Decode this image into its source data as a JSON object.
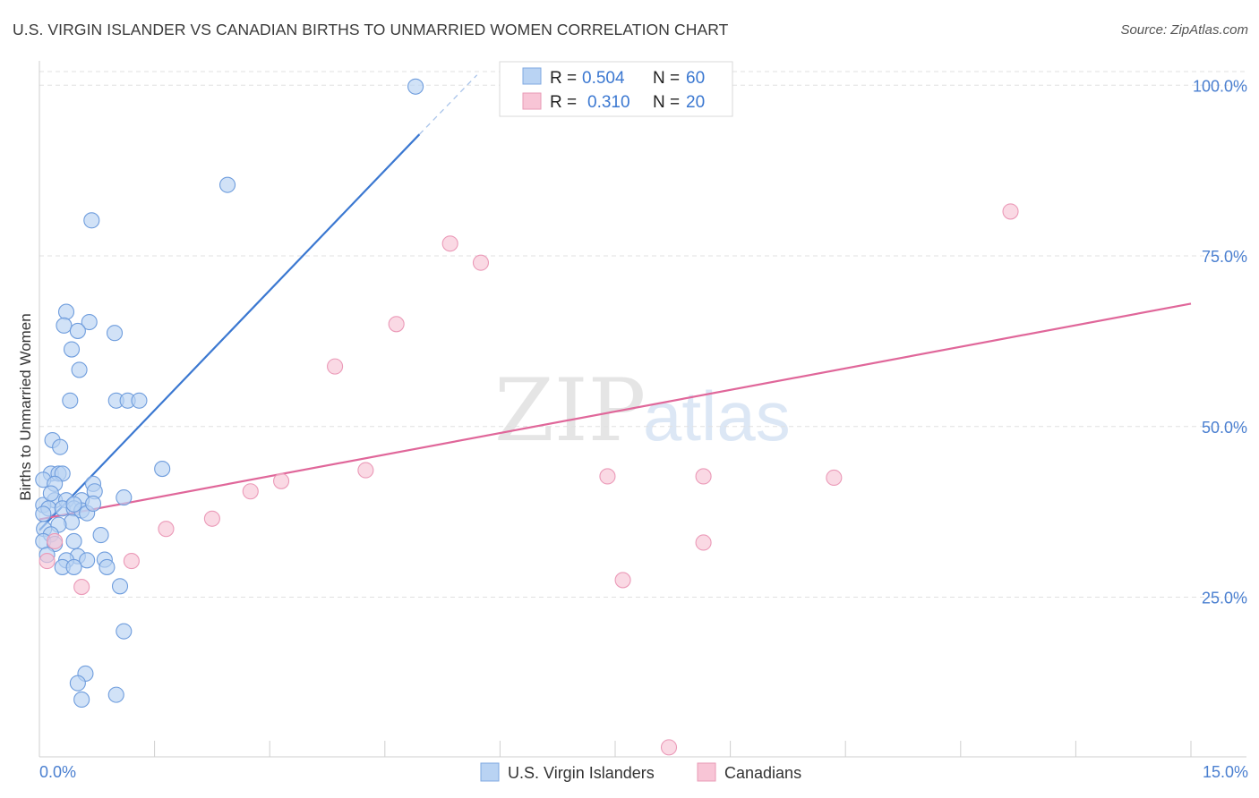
{
  "title": "U.S. VIRGIN ISLANDER VS CANADIAN BIRTHS TO UNMARRIED WOMEN CORRELATION CHART",
  "source": "Source: ZipAtlas.com",
  "watermark": {
    "zip": "ZIP",
    "atlas": "atlas"
  },
  "colors": {
    "blue": "#3b78d1",
    "blue_fill": "#b9d3f3",
    "pink": "#e0679a",
    "pink_fill": "#f8c5d6",
    "axis_text": "#4a7fd0",
    "grid": "#e0e0e0"
  },
  "stats": [
    {
      "r_label": "R =",
      "r_value": "0.504",
      "n_label": "N =",
      "n_value": "60",
      "series": "U.S. Virgin Islanders"
    },
    {
      "r_label": "R =",
      "r_value": "0.310",
      "n_label": "N =",
      "n_value": "20",
      "series": "Canadians"
    }
  ],
  "chart_data": {
    "type": "scatter",
    "title": "U.S. VIRGIN ISLANDER VS CANADIAN BIRTHS TO UNMARRIED WOMEN CORRELATION CHART",
    "xlabel": "",
    "ylabel": "Births to Unmarried Women",
    "xlim": [
      0,
      15
    ],
    "ylim": [
      2,
      102
    ],
    "x_tick_labels": [
      "0.0%",
      "15.0%"
    ],
    "y_ticks": [
      25,
      50,
      75,
      100
    ],
    "y_tick_labels": [
      "25.0%",
      "50.0%",
      "75.0%",
      "100.0%"
    ],
    "grid": true,
    "legend": [
      "U.S. Virgin Islanders",
      "Canadians"
    ],
    "series": [
      {
        "name": "U.S. Virgin Islanders",
        "points": [
          [
            4.9,
            99.8
          ],
          [
            2.45,
            85.4
          ],
          [
            0.68,
            80.2
          ],
          [
            0.35,
            66.8
          ],
          [
            0.32,
            64.8
          ],
          [
            0.65,
            65.3
          ],
          [
            0.5,
            64.0
          ],
          [
            0.98,
            63.7
          ],
          [
            0.42,
            61.3
          ],
          [
            0.52,
            58.3
          ],
          [
            0.4,
            53.8
          ],
          [
            1.0,
            53.8
          ],
          [
            1.15,
            53.8
          ],
          [
            1.3,
            53.8
          ],
          [
            0.17,
            48.0
          ],
          [
            0.27,
            47.0
          ],
          [
            1.6,
            43.8
          ],
          [
            0.15,
            43.1
          ],
          [
            0.25,
            43.1
          ],
          [
            0.3,
            43.1
          ],
          [
            0.05,
            42.2
          ],
          [
            0.2,
            41.6
          ],
          [
            0.7,
            41.6
          ],
          [
            0.72,
            40.5
          ],
          [
            0.2,
            39.2
          ],
          [
            0.35,
            39.2
          ],
          [
            0.55,
            39.2
          ],
          [
            1.1,
            39.6
          ],
          [
            0.05,
            38.5
          ],
          [
            0.12,
            38.0
          ],
          [
            0.3,
            38.0
          ],
          [
            0.45,
            38.0
          ],
          [
            0.55,
            37.7
          ],
          [
            0.62,
            37.3
          ],
          [
            0.7,
            38.7
          ],
          [
            0.05,
            37.2
          ],
          [
            0.42,
            36.0
          ],
          [
            0.25,
            35.6
          ],
          [
            0.06,
            35.0
          ],
          [
            0.15,
            34.2
          ],
          [
            0.8,
            34.1
          ],
          [
            0.45,
            33.2
          ],
          [
            0.05,
            33.2
          ],
          [
            0.2,
            32.8
          ],
          [
            0.5,
            31.0
          ],
          [
            0.35,
            30.4
          ],
          [
            0.62,
            30.4
          ],
          [
            0.3,
            29.4
          ],
          [
            0.45,
            29.4
          ],
          [
            0.85,
            30.5
          ],
          [
            0.88,
            29.4
          ],
          [
            1.05,
            26.6
          ],
          [
            1.1,
            20.0
          ],
          [
            0.6,
            13.8
          ],
          [
            0.5,
            12.4
          ],
          [
            0.55,
            10.0
          ],
          [
            1.0,
            10.7
          ],
          [
            0.1,
            31.2
          ],
          [
            0.45,
            38.6
          ],
          [
            0.15,
            40.2
          ]
        ]
      },
      {
        "name": "Canadians",
        "points": [
          [
            12.65,
            81.5
          ],
          [
            5.35,
            76.8
          ],
          [
            5.75,
            74.0
          ],
          [
            4.65,
            65.0
          ],
          [
            3.85,
            58.8
          ],
          [
            10.35,
            42.5
          ],
          [
            4.25,
            43.6
          ],
          [
            3.15,
            42.0
          ],
          [
            7.4,
            42.7
          ],
          [
            8.65,
            42.7
          ],
          [
            2.75,
            40.5
          ],
          [
            2.25,
            36.5
          ],
          [
            1.65,
            35.0
          ],
          [
            8.65,
            33.0
          ],
          [
            1.2,
            30.3
          ],
          [
            0.1,
            30.3
          ],
          [
            0.55,
            26.5
          ],
          [
            7.6,
            27.5
          ],
          [
            0.2,
            33.2
          ],
          [
            8.2,
            3.0
          ]
        ]
      }
    ],
    "trendlines": [
      {
        "series": "U.S. Virgin Islanders",
        "x": [
          0,
          4.95
        ],
        "y": [
          34.8,
          92.8
        ],
        "dashed_extension_to": [
          5.7,
          101.5
        ]
      },
      {
        "series": "Canadians",
        "x": [
          0,
          15
        ],
        "y": [
          36.4,
          68.0
        ]
      }
    ]
  }
}
